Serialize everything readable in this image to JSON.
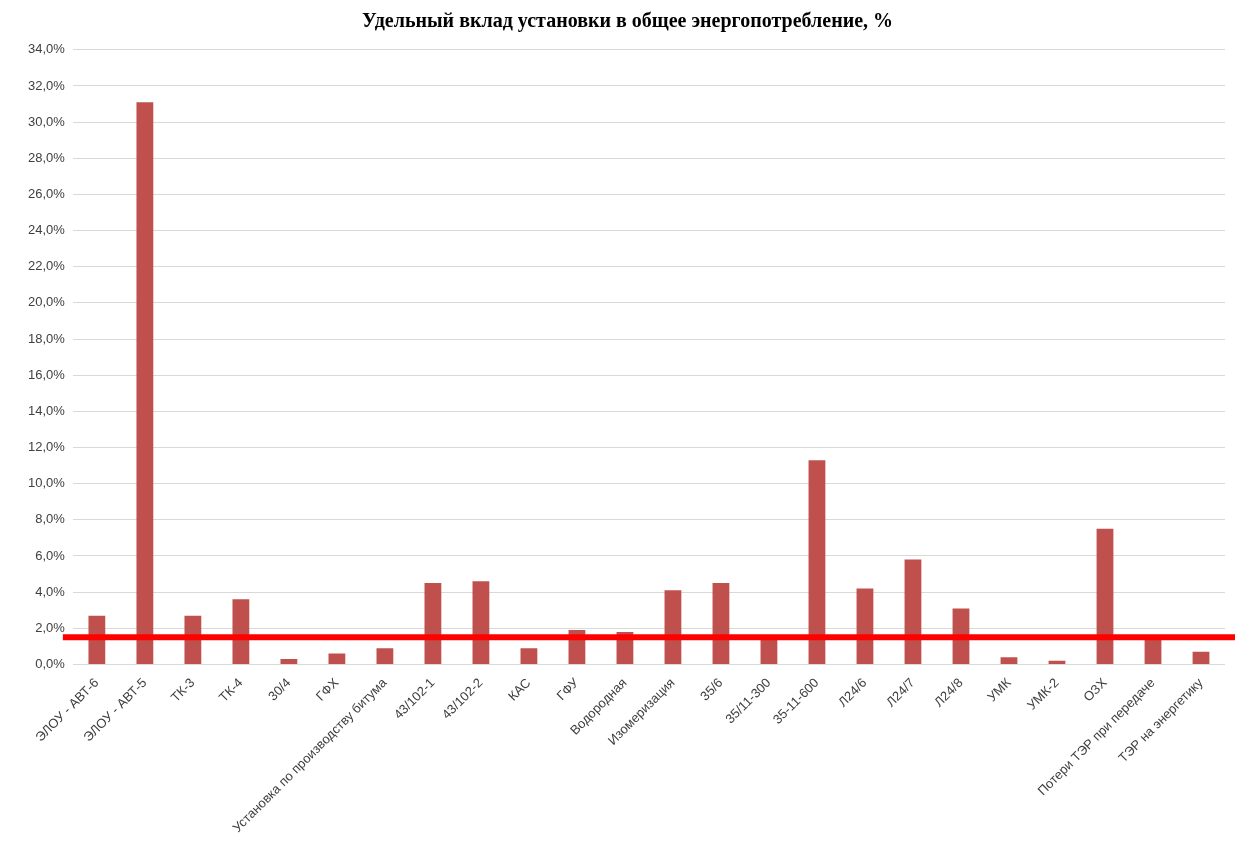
{
  "chart_data": {
    "type": "bar",
    "title": "Удельный вклад установки в общее энергопотребление, %",
    "categories": [
      "ЭЛОУ - АВТ-6",
      "ЭЛОУ - АВТ-5",
      "ТК-3",
      "ТК-4",
      "30/4",
      "ГФХ",
      "Установка по производству битума",
      "43/102-1",
      "43/102-2",
      "КАС",
      "ГФУ",
      "Водородная",
      "Изомеризация",
      "35/6",
      "35/11-300",
      "35-11-600",
      "Л24/6",
      "Л24/7",
      "Л24/8",
      "УМК",
      "УМК-2",
      "ОЗХ",
      "Потери ТЭР при передаче",
      "ТЭР на энергетику"
    ],
    "values": [
      2.7,
      31.1,
      2.7,
      3.6,
      0.3,
      0.6,
      0.9,
      4.5,
      4.6,
      0.9,
      1.9,
      1.8,
      4.1,
      4.5,
      1.4,
      11.3,
      4.2,
      5.8,
      3.1,
      0.4,
      0.2,
      7.5,
      1.5,
      0.7
    ],
    "color": "#c0504d",
    "ylim": [
      0,
      34
    ],
    "yticks": [
      {
        "value": 0,
        "label": "0,0%"
      },
      {
        "value": 2,
        "label": "2,0%"
      },
      {
        "value": 4,
        "label": "4,0%"
      },
      {
        "value": 6,
        "label": "6,0%"
      },
      {
        "value": 8,
        "label": "8,0%"
      },
      {
        "value": 10,
        "label": "10,0%"
      },
      {
        "value": 12,
        "label": "12,0%"
      },
      {
        "value": 14,
        "label": "14,0%"
      },
      {
        "value": 16,
        "label": "16,0%"
      },
      {
        "value": 18,
        "label": "18,0%"
      },
      {
        "value": 20,
        "label": "20,0%"
      },
      {
        "value": 22,
        "label": "22,0%"
      },
      {
        "value": 24,
        "label": "24,0%"
      },
      {
        "value": 26,
        "label": "26,0%"
      },
      {
        "value": 28,
        "label": "28,0%"
      },
      {
        "value": 30,
        "label": "30,0%"
      },
      {
        "value": 32,
        "label": "32,0%"
      },
      {
        "value": 34,
        "label": "34,0%"
      }
    ],
    "ref_lines": [
      {
        "axis": "y",
        "value": 1.5,
        "color": "#ff0000"
      }
    ],
    "grid": "y",
    "legend": false
  }
}
